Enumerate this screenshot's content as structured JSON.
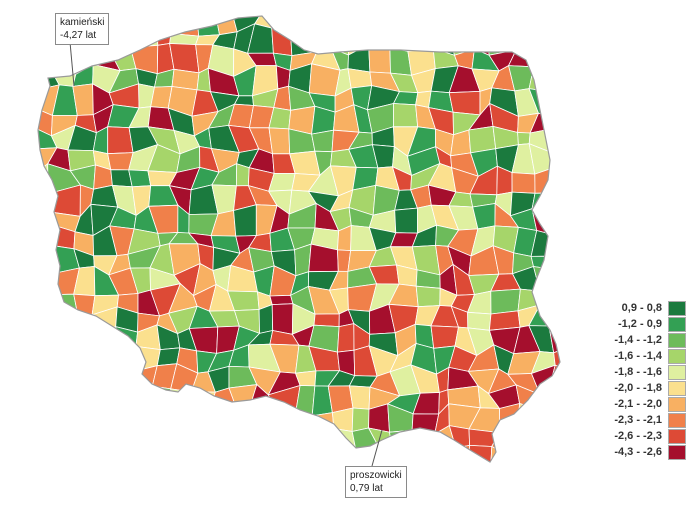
{
  "callouts": {
    "kamienski": {
      "line1": "kamieński",
      "line2": "-4,27 lat"
    },
    "proszowicki": {
      "line1": "proszowicki",
      "line2": "0,79 lat"
    }
  },
  "legend": [
    {
      "label": "0,9  -  0,8",
      "color": "#1b7a3e"
    },
    {
      "label": "-1,2  -  0,9",
      "color": "#33a054"
    },
    {
      "label": "-1,4  -  -1,2",
      "color": "#6dbb5b"
    },
    {
      "label": "-1,6  -  -1,4",
      "color": "#a6d56a"
    },
    {
      "label": "-1,8  -  -1,6",
      "color": "#dff0a0"
    },
    {
      "label": "-2,0  -  -1,8",
      "color": "#fbe08e"
    },
    {
      "label": "-2,1  -  -2,0",
      "color": "#f8b062"
    },
    {
      "label": "-2,3  -  -2,1",
      "color": "#f0804a"
    },
    {
      "label": "-2,6  -  -2,3",
      "color": "#dd4a36"
    },
    {
      "label": "-4,3  -  -2,6",
      "color": "#a50f2d"
    }
  ]
}
